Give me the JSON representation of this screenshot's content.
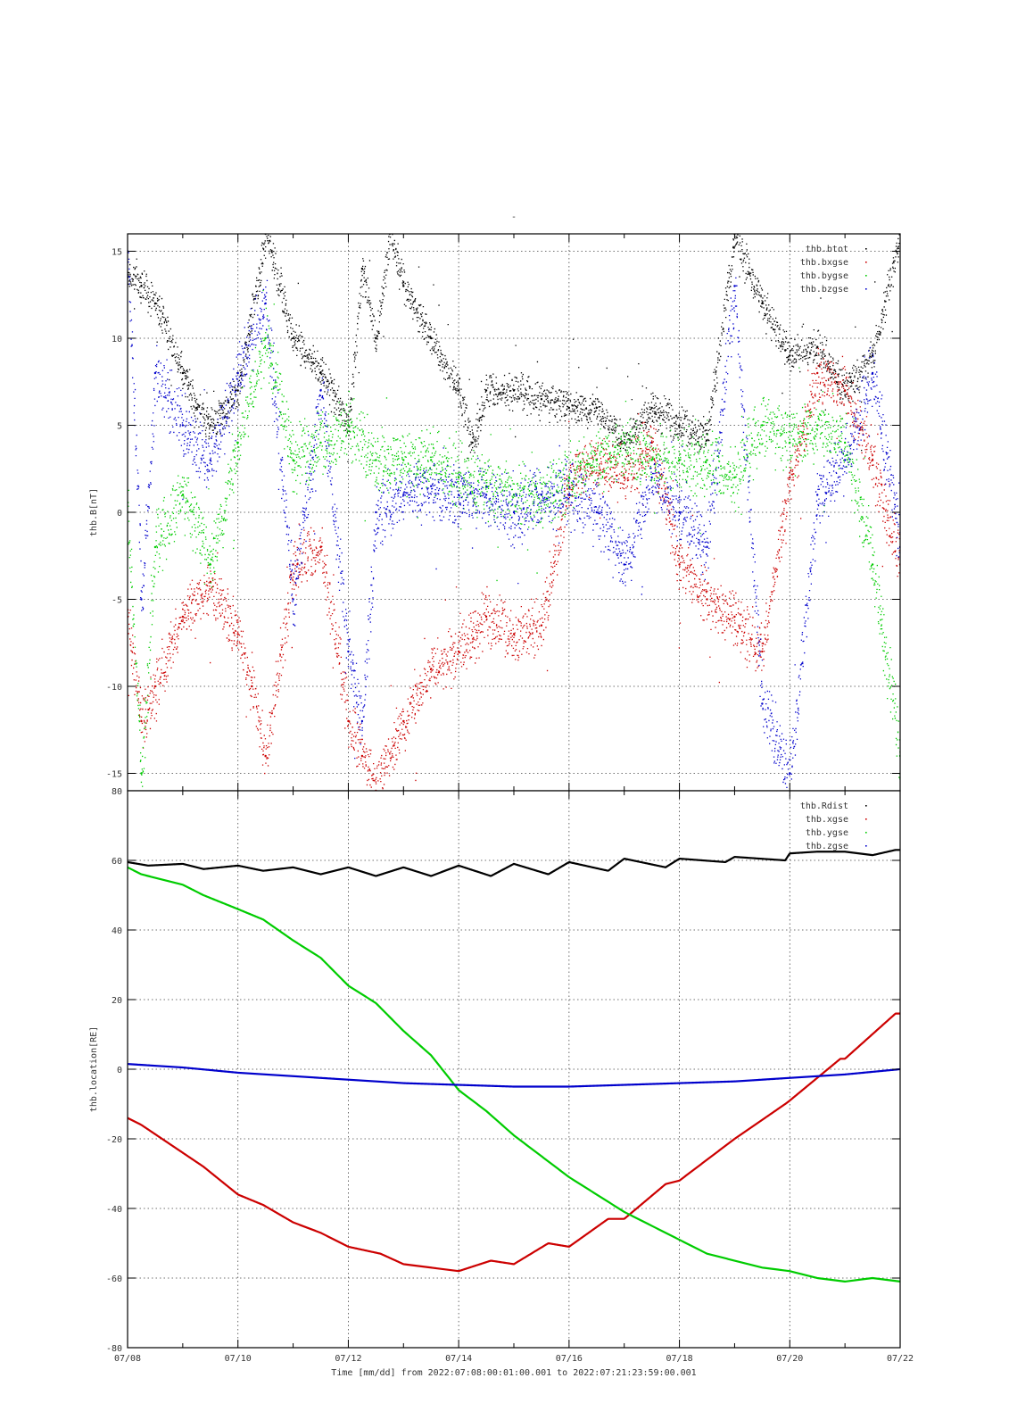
{
  "figure": {
    "title": "-",
    "footer": "Time [mm/dd]  from 2022:07:08:00:01:00.001  to  2022:07:21:23:59:00.001",
    "x_tick_labels": [
      "07/08",
      "07/10",
      "07/12",
      "07/14",
      "07/16",
      "07/18",
      "07/20",
      "07/22"
    ]
  },
  "chart_data": [
    {
      "type": "scatter",
      "ylabel": "thb.B[nT]",
      "xlabel": "Time [mm/dd]",
      "xlim": [
        "2022-07-08",
        "2022-07-22"
      ],
      "ylim": [
        -16,
        16
      ],
      "y_ticks": [
        15,
        10,
        5,
        0,
        -5,
        -10,
        -15
      ],
      "grid": true,
      "legend_position": "top-right",
      "series": [
        {
          "name": "thb.btot",
          "color": "#000000",
          "spread": 0.9,
          "x": [
            "2022-07-08T00:00",
            "2022-07-08T06:00",
            "2022-07-08T12:00",
            "2022-07-09T00:00",
            "2022-07-09T06:00",
            "2022-07-09T12:00",
            "2022-07-10T00:00",
            "2022-07-10T12:00",
            "2022-07-11T00:00",
            "2022-07-11T12:00",
            "2022-07-12T00:00",
            "2022-07-12T06:00",
            "2022-07-12T12:00",
            "2022-07-12T18:00",
            "2022-07-13T00:00",
            "2022-07-13T12:00",
            "2022-07-14T00:00",
            "2022-07-14T06:00",
            "2022-07-14T12:00",
            "2022-07-15T00:00",
            "2022-07-15T12:00",
            "2022-07-16T00:00",
            "2022-07-16T12:00",
            "2022-07-17T00:00",
            "2022-07-17T12:00",
            "2022-07-18T00:00",
            "2022-07-18T12:00",
            "2022-07-19T00:00",
            "2022-07-19T12:00",
            "2022-07-20T00:00",
            "2022-07-20T12:00",
            "2022-07-21T00:00",
            "2022-07-21T12:00",
            "2022-07-22T00:00"
          ],
          "y": [
            13.5,
            13,
            12,
            8,
            6,
            5,
            7,
            16,
            10,
            8,
            5,
            14,
            10,
            16,
            13,
            10,
            7,
            4,
            7,
            7,
            6.5,
            6,
            6,
            4,
            6,
            5,
            4.5,
            16,
            12,
            9,
            9.5,
            7,
            9,
            16
          ]
        },
        {
          "name": "thb.bxgse",
          "color": "#cc0000",
          "spread": 1.4,
          "x": [
            "2022-07-08T00:00",
            "2022-07-08T06:00",
            "2022-07-08T12:00",
            "2022-07-09T00:00",
            "2022-07-09T12:00",
            "2022-07-10T00:00",
            "2022-07-10T06:00",
            "2022-07-10T12:00",
            "2022-07-11T00:00",
            "2022-07-11T12:00",
            "2022-07-12T00:00",
            "2022-07-12T06:00",
            "2022-07-12T12:00",
            "2022-07-13T00:00",
            "2022-07-13T12:00",
            "2022-07-14T00:00",
            "2022-07-14T12:00",
            "2022-07-15T00:00",
            "2022-07-15T12:00",
            "2022-07-16T00:00",
            "2022-07-16T12:00",
            "2022-07-17T00:00",
            "2022-07-17T12:00",
            "2022-07-18T00:00",
            "2022-07-18T12:00",
            "2022-07-19T00:00",
            "2022-07-19T12:00",
            "2022-07-20T00:00",
            "2022-07-20T12:00",
            "2022-07-21T00:00",
            "2022-07-21T12:00",
            "2022-07-22T00:00"
          ],
          "y": [
            -6,
            -12,
            -10,
            -6,
            -4,
            -7,
            -10,
            -14,
            -3,
            -2,
            -12,
            -14,
            -16,
            -12,
            -9,
            -8,
            -6,
            -7,
            -6.5,
            2,
            3,
            2,
            4,
            -3,
            -5,
            -6,
            -8,
            2,
            8,
            7,
            3,
            -3
          ]
        },
        {
          "name": "thb.bygse",
          "color": "#00cc00",
          "spread": 1.6,
          "x": [
            "2022-07-08T00:00",
            "2022-07-08T06:00",
            "2022-07-08T12:00",
            "2022-07-09T00:00",
            "2022-07-09T12:00",
            "2022-07-10T00:00",
            "2022-07-10T12:00",
            "2022-07-11T00:00",
            "2022-07-11T12:00",
            "2022-07-12T00:00",
            "2022-07-12T12:00",
            "2022-07-13T00:00",
            "2022-07-13T12:00",
            "2022-07-14T00:00",
            "2022-07-14T12:00",
            "2022-07-15T00:00",
            "2022-07-15T12:00",
            "2022-07-16T00:00",
            "2022-07-16T12:00",
            "2022-07-17T00:00",
            "2022-07-17T12:00",
            "2022-07-18T00:00",
            "2022-07-18T12:00",
            "2022-07-19T00:00",
            "2022-07-19T12:00",
            "2022-07-20T00:00",
            "2022-07-20T12:00",
            "2022-07-21T00:00",
            "2022-07-21T12:00",
            "2022-07-22T00:00"
          ],
          "y": [
            0,
            -15,
            -2,
            1,
            -3,
            4,
            10,
            3,
            4,
            5,
            3,
            3,
            3,
            2,
            1.5,
            1,
            1,
            2,
            3,
            4,
            3,
            3,
            3,
            2,
            5,
            4,
            5,
            4,
            -3,
            -14
          ]
        },
        {
          "name": "thb.bzgse",
          "color": "#0000cc",
          "spread": 1.6,
          "x": [
            "2022-07-08T00:00",
            "2022-07-08T06:00",
            "2022-07-08T12:00",
            "2022-07-09T00:00",
            "2022-07-09T12:00",
            "2022-07-10T00:00",
            "2022-07-10T12:00",
            "2022-07-11T00:00",
            "2022-07-11T12:00",
            "2022-07-12T00:00",
            "2022-07-12T06:00",
            "2022-07-12T12:00",
            "2022-07-13T00:00",
            "2022-07-13T12:00",
            "2022-07-14T00:00",
            "2022-07-14T12:00",
            "2022-07-15T00:00",
            "2022-07-15T12:00",
            "2022-07-16T00:00",
            "2022-07-16T12:00",
            "2022-07-17T00:00",
            "2022-07-17T12:00",
            "2022-07-18T00:00",
            "2022-07-18T12:00",
            "2022-07-19T00:00",
            "2022-07-19T12:00",
            "2022-07-20T00:00",
            "2022-07-20T12:00",
            "2022-07-21T00:00",
            "2022-07-21T12:00",
            "2022-07-22T00:00"
          ],
          "y": [
            15,
            -5,
            8,
            5,
            3,
            8,
            12,
            -5,
            7,
            -8,
            -12,
            0,
            1,
            1.5,
            1,
            1,
            0,
            1,
            1,
            0,
            -3,
            2,
            0,
            -2,
            13,
            -11,
            -15,
            1,
            3,
            8,
            -2
          ]
        }
      ]
    },
    {
      "type": "line",
      "ylabel": "thb.location[RE]",
      "xlabel": "Time [mm/dd]",
      "xlim": [
        "2022-07-08",
        "2022-07-22"
      ],
      "ylim": [
        -80,
        80
      ],
      "y_ticks": [
        80,
        60,
        40,
        20,
        0,
        -20,
        -40,
        -60,
        -80
      ],
      "grid": true,
      "legend_position": "top-right",
      "series": [
        {
          "name": "thb.Rdist",
          "color": "#000000",
          "x": [
            "2022-07-08T00:00",
            "2022-07-08T09:00",
            "2022-07-09T00:00",
            "2022-07-09T09:00",
            "2022-07-10T00:00",
            "2022-07-10T11:00",
            "2022-07-11T00:00",
            "2022-07-11T12:00",
            "2022-07-12T00:00",
            "2022-07-12T12:00",
            "2022-07-13T00:00",
            "2022-07-13T12:00",
            "2022-07-14T00:00",
            "2022-07-14T14:00",
            "2022-07-15T00:00",
            "2022-07-15T15:00",
            "2022-07-16T00:00",
            "2022-07-16T17:00",
            "2022-07-17T00:00",
            "2022-07-17T18:00",
            "2022-07-18T00:00",
            "2022-07-18T20:00",
            "2022-07-19T00:00",
            "2022-07-19T22:00",
            "2022-07-20T00:00",
            "2022-07-20T12:00",
            "2022-07-21T00:00",
            "2022-07-21T12:00",
            "2022-07-21T22:00"
          ],
          "y": [
            59.5,
            58.5,
            59,
            57.5,
            58.5,
            57,
            58,
            56,
            58,
            55.5,
            58,
            55.5,
            58.5,
            55.5,
            59,
            56,
            59.5,
            57,
            60.5,
            58,
            60.5,
            59.5,
            61,
            60,
            62,
            62.5,
            62.5,
            61.5,
            63
          ]
        },
        {
          "name": "thb.xgse",
          "color": "#cc0000",
          "x": [
            "2022-07-08T00:00",
            "2022-07-08T06:00",
            "2022-07-09T00:00",
            "2022-07-09T09:00",
            "2022-07-10T00:00",
            "2022-07-10T11:00",
            "2022-07-11T00:00",
            "2022-07-11T12:00",
            "2022-07-12T00:00",
            "2022-07-12T14:00",
            "2022-07-13T00:00",
            "2022-07-13T12:00",
            "2022-07-14T00:00",
            "2022-07-14T14:00",
            "2022-07-15T00:00",
            "2022-07-15T15:00",
            "2022-07-16T00:00",
            "2022-07-16T17:00",
            "2022-07-17T00:00",
            "2022-07-17T18:00",
            "2022-07-18T00:00",
            "2022-07-18T20:00",
            "2022-07-19T00:00",
            "2022-07-19T22:00",
            "2022-07-20T00:00",
            "2022-07-20T22:00",
            "2022-07-21T00:00",
            "2022-07-21T22:00",
            "2022-07-22T00:00"
          ],
          "y": [
            -14,
            -16,
            -24,
            -28,
            -36,
            -39,
            -44,
            -47,
            -51,
            -53,
            -56,
            -57,
            -58,
            -55,
            -56,
            -50,
            -51,
            -43,
            -43,
            -33,
            -32,
            -22,
            -20,
            -10,
            -9,
            3,
            3,
            16,
            16
          ]
        },
        {
          "name": "thb.ygse",
          "color": "#00cc00",
          "x": [
            "2022-07-08T00:00",
            "2022-07-08T06:00",
            "2022-07-09T00:00",
            "2022-07-09T09:00",
            "2022-07-10T00:00",
            "2022-07-10T11:00",
            "2022-07-11T00:00",
            "2022-07-11T12:00",
            "2022-07-12T00:00",
            "2022-07-12T12:00",
            "2022-07-13T00:00",
            "2022-07-13T12:00",
            "2022-07-14T00:00",
            "2022-07-14T12:00",
            "2022-07-15T00:00",
            "2022-07-15T12:00",
            "2022-07-16T00:00",
            "2022-07-16T12:00",
            "2022-07-17T00:00",
            "2022-07-17T12:00",
            "2022-07-18T00:00",
            "2022-07-18T12:00",
            "2022-07-19T00:00",
            "2022-07-19T12:00",
            "2022-07-20T00:00",
            "2022-07-20T12:00",
            "2022-07-21T00:00",
            "2022-07-21T12:00",
            "2022-07-22T00:00"
          ],
          "y": [
            58,
            56,
            53,
            50,
            46,
            43,
            37,
            32,
            24,
            19,
            11,
            4,
            -6,
            -12,
            -19,
            -25,
            -31,
            -36,
            -41,
            -45,
            -49,
            -53,
            -55,
            -57,
            -58,
            -60,
            -61,
            -60,
            -61
          ]
        },
        {
          "name": "thb.zgse",
          "color": "#0000cc",
          "x": [
            "2022-07-08T00:00",
            "2022-07-09T00:00",
            "2022-07-10T00:00",
            "2022-07-11T00:00",
            "2022-07-12T00:00",
            "2022-07-13T00:00",
            "2022-07-14T00:00",
            "2022-07-15T00:00",
            "2022-07-16T00:00",
            "2022-07-17T00:00",
            "2022-07-18T00:00",
            "2022-07-19T00:00",
            "2022-07-20T00:00",
            "2022-07-21T00:00",
            "2022-07-22T00:00"
          ],
          "y": [
            1.5,
            0.5,
            -1,
            -2,
            -3,
            -4,
            -4.5,
            -5,
            -5,
            -4.5,
            -4,
            -3.5,
            -2.5,
            -1.5,
            0
          ]
        }
      ]
    }
  ]
}
